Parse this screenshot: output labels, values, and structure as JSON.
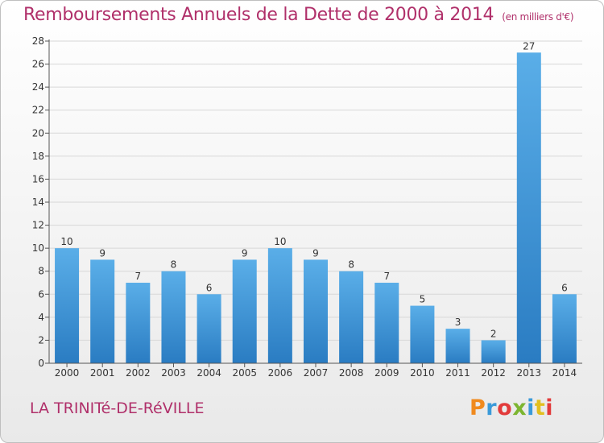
{
  "header": {
    "title": "Remboursements Annuels de la Dette de 2000 à 2014",
    "unit": "(en milliers d'€)"
  },
  "footer": {
    "commune": "LA TRINITé-DE-RéVILLE",
    "logo_text": "Proxiti",
    "logo_colors": [
      "#f08a1e",
      "#3a9ad9",
      "#e23b3b",
      "#7cb530",
      "#3a9ad9",
      "#e2bf1e",
      "#e23b3b"
    ]
  },
  "colors": {
    "bar_light": "#5aaee8",
    "bar_dark": "#2a7cc2",
    "grid": "#d8d8d8",
    "axis": "#555555",
    "text": "#333333"
  },
  "chart_data": {
    "type": "bar",
    "title": "Remboursements Annuels de la Dette de 2000 à 2014",
    "xlabel": "",
    "ylabel": "",
    "ylim": [
      0,
      28
    ],
    "yticks": [
      0,
      2,
      4,
      6,
      8,
      10,
      12,
      14,
      16,
      18,
      20,
      22,
      24,
      26,
      28
    ],
    "grid": true,
    "categories": [
      "2000",
      "2001",
      "2002",
      "2003",
      "2004",
      "2005",
      "2006",
      "2007",
      "2008",
      "2009",
      "2010",
      "2011",
      "2012",
      "2013",
      "2014"
    ],
    "values": [
      10,
      9,
      7,
      8,
      6,
      9,
      10,
      9,
      8,
      7,
      5,
      3,
      2,
      27,
      6
    ]
  }
}
